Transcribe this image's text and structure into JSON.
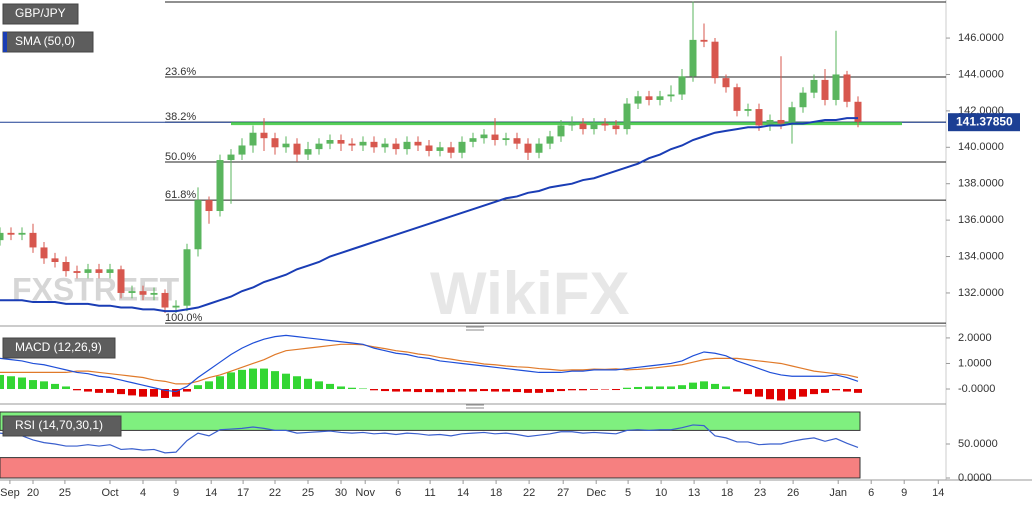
{
  "chart_data": [
    {
      "type": "candlestick",
      "title": "GBP/JPY",
      "indicator_label": "SMA (50,0)",
      "xlim": [
        0,
        86
      ],
      "ylim": [
        130.24,
        148.09
      ],
      "yticks": [
        {
          "value": 132,
          "label": "132.0000"
        },
        {
          "value": 134,
          "label": "134.0000"
        },
        {
          "value": 136,
          "label": "136.0000"
        },
        {
          "value": 138,
          "label": "138.0000"
        },
        {
          "value": 140,
          "label": "140.0000"
        },
        {
          "value": 142,
          "label": "142.0000"
        },
        {
          "value": 144,
          "label": "144.0000"
        },
        {
          "value": 146,
          "label": "146.0000"
        }
      ],
      "up_color": "#5ab55e",
      "down_color": "#d7574e",
      "open": [
        134.9,
        135.3,
        135.2,
        135.3,
        134.5,
        133.9,
        133.7,
        133.2,
        133.1,
        133.3,
        133.1,
        133.3,
        132.0,
        132.1,
        131.9,
        132.0,
        131.2,
        131.3,
        134.4,
        137.1,
        136.5,
        139.3,
        139.6,
        140.1,
        140.8,
        140.5,
        140.0,
        140.2,
        139.6,
        139.9,
        140.2,
        140.4,
        140.2,
        140.1,
        140.3,
        140.0,
        140.2,
        139.9,
        140.3,
        140.1,
        139.8,
        140.0,
        139.7,
        140.3,
        140.5,
        140.7,
        140.4,
        140.5,
        140.2,
        139.7,
        140.2,
        140.6,
        141.2,
        141.3,
        141.0,
        141.3,
        141.2,
        141.0,
        142.4,
        142.8,
        142.6,
        142.8,
        142.9,
        143.9,
        145.9,
        145.8,
        143.8,
        143.3,
        142.0,
        142.1,
        141.2,
        141.5,
        141.3,
        142.2,
        143.0,
        143.7,
        142.6,
        144.0,
        142.5
      ],
      "high": [
        135.6,
        135.6,
        135.6,
        135.8,
        134.8,
        134.2,
        134.0,
        133.5,
        133.6,
        133.6,
        133.6,
        133.5,
        132.4,
        132.4,
        132.3,
        132.2,
        131.6,
        134.7,
        137.8,
        137.3,
        139.6,
        139.9,
        140.5,
        141.2,
        141.6,
        140.8,
        140.6,
        140.5,
        140.3,
        140.5,
        140.7,
        140.7,
        140.5,
        140.6,
        140.6,
        140.5,
        140.5,
        140.6,
        140.6,
        140.4,
        140.3,
        140.3,
        140.6,
        140.8,
        141.0,
        141.6,
        140.8,
        140.8,
        140.5,
        140.5,
        140.9,
        141.5,
        141.7,
        141.6,
        141.6,
        141.6,
        141.5,
        142.7,
        143.1,
        143.1,
        143.1,
        143.4,
        144.3,
        148.0,
        146.8,
        146.0,
        144.0,
        143.5,
        142.4,
        142.4,
        141.8,
        145.0,
        142.5,
        143.3,
        144.0,
        144.3,
        146.4,
        144.2,
        142.8
      ],
      "low": [
        134.6,
        134.9,
        134.9,
        134.2,
        133.6,
        133.4,
        132.9,
        132.8,
        132.8,
        132.8,
        132.8,
        131.7,
        131.7,
        131.6,
        131.6,
        130.9,
        130.9,
        131.0,
        134.0,
        135.8,
        136.2,
        136.9,
        139.3,
        139.7,
        139.8,
        139.6,
        139.7,
        139.2,
        139.3,
        139.6,
        139.9,
        139.8,
        139.8,
        139.8,
        139.7,
        139.7,
        139.6,
        139.6,
        139.8,
        139.5,
        139.5,
        139.4,
        139.4,
        140.0,
        140.2,
        140.1,
        140.1,
        139.9,
        139.3,
        139.4,
        139.9,
        140.3,
        140.9,
        140.7,
        140.7,
        140.9,
        140.7,
        140.7,
        142.1,
        142.3,
        142.3,
        142.5,
        142.6,
        143.6,
        145.5,
        143.5,
        143.0,
        141.7,
        141.7,
        140.9,
        140.9,
        141.0,
        140.2,
        141.9,
        142.7,
        142.3,
        142.3,
        142.2,
        141.1
      ],
      "close": [
        135.3,
        135.2,
        135.3,
        134.5,
        133.9,
        133.7,
        133.2,
        133.1,
        133.3,
        133.1,
        133.3,
        132.0,
        132.1,
        131.9,
        132.0,
        131.2,
        131.3,
        134.4,
        137.1,
        136.5,
        139.3,
        139.6,
        140.1,
        140.8,
        140.5,
        140.0,
        140.2,
        139.6,
        139.9,
        140.2,
        140.4,
        140.2,
        140.1,
        140.3,
        140.0,
        140.2,
        139.9,
        140.3,
        140.1,
        139.8,
        140.0,
        139.7,
        140.3,
        140.5,
        140.7,
        140.4,
        140.5,
        140.2,
        139.7,
        140.2,
        140.6,
        141.2,
        141.3,
        141.0,
        141.3,
        141.2,
        141.0,
        142.4,
        142.8,
        142.6,
        142.8,
        142.9,
        143.9,
        145.9,
        145.8,
        143.8,
        143.3,
        142.0,
        142.1,
        141.2,
        141.5,
        141.3,
        142.2,
        143.0,
        143.7,
        142.6,
        144.0,
        142.5,
        141.4
      ],
      "sma": {
        "color": "#1a3db5",
        "values": [
          131.6,
          131.6,
          131.6,
          131.5,
          131.5,
          131.5,
          131.4,
          131.4,
          131.4,
          131.3,
          131.3,
          131.2,
          131.2,
          131.1,
          131.1,
          131.0,
          131.0,
          131.1,
          131.2,
          131.4,
          131.6,
          131.8,
          132.1,
          132.3,
          132.6,
          132.8,
          133.0,
          133.3,
          133.5,
          133.7,
          134.0,
          134.2,
          134.4,
          134.6,
          134.8,
          135.0,
          135.2,
          135.4,
          135.6,
          135.8,
          136.0,
          136.2,
          136.4,
          136.6,
          136.8,
          137.0,
          137.2,
          137.3,
          137.5,
          137.6,
          137.8,
          137.9,
          138.0,
          138.2,
          138.3,
          138.5,
          138.7,
          138.9,
          139.1,
          139.4,
          139.6,
          139.9,
          140.1,
          140.4,
          140.6,
          140.8,
          140.9,
          141.0,
          141.1,
          141.1,
          141.2,
          141.2,
          141.3,
          141.3,
          141.4,
          141.5,
          141.5,
          141.6,
          141.6
        ]
      },
      "fib_levels": [
        {
          "value": 147.98
        },
        {
          "value": 143.86,
          "label": "23.6%"
        },
        {
          "value": 141.38,
          "label": "38.2%"
        },
        {
          "value": 139.19,
          "label": "50.0%"
        },
        {
          "value": 137.1,
          "label": "61.8%"
        },
        {
          "value": 130.34,
          "label": "100.0%"
        }
      ],
      "support": {
        "value": 141.3,
        "x": [
          21,
          82
        ],
        "color": "#3cc83c"
      },
      "price_line": {
        "value": 141.3785,
        "label": "141.37850",
        "color": "#1c3f94"
      },
      "watermarks": [
        "FXSTREET",
        "WikiFX"
      ]
    },
    {
      "type": "macd",
      "title": "MACD (12,26,9)",
      "xlim": [
        0,
        86
      ],
      "ylim": [
        -0.43,
        2.31
      ],
      "yticks": [
        {
          "value": 2,
          "label": "2.0000"
        },
        {
          "value": 1,
          "label": "1.0000"
        },
        {
          "value": 0,
          "label": "-0.0000"
        }
      ],
      "histogram": {
        "up_color": "#33d633",
        "down_color": "#e00000",
        "values": [
          0.55,
          0.5,
          0.45,
          0.35,
          0.3,
          0.2,
          0.1,
          -0.05,
          -0.1,
          -0.15,
          -0.15,
          -0.2,
          -0.25,
          -0.3,
          -0.3,
          -0.35,
          -0.3,
          -0.1,
          0.15,
          0.3,
          0.5,
          0.65,
          0.75,
          0.8,
          0.8,
          0.7,
          0.6,
          0.5,
          0.4,
          0.3,
          0.2,
          0.1,
          0.05,
          0.02,
          -0.05,
          -0.08,
          -0.1,
          -0.1,
          -0.12,
          -0.12,
          -0.13,
          -0.12,
          -0.1,
          -0.1,
          -0.08,
          -0.1,
          -0.1,
          -0.12,
          -0.15,
          -0.15,
          -0.12,
          -0.08,
          -0.05,
          -0.05,
          -0.03,
          -0.02,
          -0.04,
          0.05,
          0.08,
          0.1,
          0.1,
          0.1,
          0.15,
          0.25,
          0.3,
          0.2,
          0.1,
          -0.1,
          -0.2,
          -0.3,
          -0.4,
          -0.45,
          -0.4,
          -0.3,
          -0.2,
          -0.15,
          -0.05,
          -0.1,
          -0.15
        ]
      },
      "macd": {
        "color": "#1f4fd8",
        "values": [
          1.2,
          1.15,
          1.1,
          1.0,
          0.95,
          0.85,
          0.75,
          0.65,
          0.6,
          0.5,
          0.45,
          0.35,
          0.25,
          0.15,
          0.05,
          -0.05,
          -0.1,
          0.1,
          0.45,
          0.75,
          1.05,
          1.35,
          1.6,
          1.8,
          1.95,
          2.05,
          2.1,
          2.05,
          2.0,
          1.95,
          1.9,
          1.85,
          1.8,
          1.75,
          1.6,
          1.5,
          1.4,
          1.35,
          1.25,
          1.2,
          1.1,
          1.05,
          1.0,
          0.95,
          0.9,
          0.85,
          0.8,
          0.75,
          0.7,
          0.65,
          0.65,
          0.65,
          0.7,
          0.7,
          0.75,
          0.75,
          0.75,
          0.8,
          0.85,
          0.9,
          0.95,
          1.0,
          1.1,
          1.3,
          1.45,
          1.4,
          1.3,
          1.1,
          0.95,
          0.8,
          0.65,
          0.55,
          0.5,
          0.5,
          0.5,
          0.5,
          0.55,
          0.45,
          0.3
        ]
      },
      "signal": {
        "color": "#e07a2a",
        "values": [
          0.65,
          0.65,
          0.65,
          0.65,
          0.65,
          0.65,
          0.65,
          0.7,
          0.7,
          0.65,
          0.6,
          0.55,
          0.5,
          0.45,
          0.35,
          0.3,
          0.2,
          0.2,
          0.3,
          0.45,
          0.55,
          0.7,
          0.85,
          1.0,
          1.15,
          1.35,
          1.5,
          1.55,
          1.6,
          1.65,
          1.7,
          1.75,
          1.75,
          1.73,
          1.65,
          1.58,
          1.5,
          1.45,
          1.37,
          1.32,
          1.23,
          1.17,
          1.1,
          1.05,
          0.98,
          0.95,
          0.9,
          0.87,
          0.85,
          0.8,
          0.77,
          0.73,
          0.75,
          0.75,
          0.78,
          0.77,
          0.79,
          0.75,
          0.77,
          0.8,
          0.85,
          0.9,
          0.95,
          1.05,
          1.15,
          1.2,
          1.2,
          1.2,
          1.15,
          1.1,
          1.05,
          1.0,
          0.9,
          0.8,
          0.7,
          0.65,
          0.6,
          0.55,
          0.45
        ]
      }
    },
    {
      "type": "rsi",
      "title": "RSI (14,70,30,1)",
      "xlim": [
        0,
        86
      ],
      "ylim": [
        0,
        100
      ],
      "yticks": [
        {
          "value": 50,
          "label": "50.0000"
        },
        {
          "value": 0,
          "label": "0.0000"
        }
      ],
      "upper_band": 70,
      "lower_band": 30,
      "upper_color": "#7ff07f",
      "lower_color": "#f68080",
      "rsi": {
        "color": "#3a5fcd",
        "values": [
          66,
          64,
          62,
          56,
          52,
          50,
          47,
          47,
          49,
          47,
          49,
          42,
          43,
          41,
          42,
          37,
          38,
          55,
          66,
          62,
          71,
          72,
          73,
          75,
          73,
          70,
          70,
          66,
          67,
          68,
          69,
          67,
          66,
          67,
          65,
          66,
          64,
          66,
          65,
          63,
          64,
          62,
          65,
          66,
          67,
          65,
          66,
          64,
          61,
          63,
          65,
          68,
          68,
          66,
          67,
          66,
          65,
          70,
          71,
          70,
          71,
          71,
          74,
          78,
          77,
          62,
          59,
          53,
          53,
          49,
          50,
          50,
          54,
          57,
          59,
          54,
          58,
          51,
          45
        ]
      },
      "xticks": [
        {
          "value": 0.9,
          "label": "Sep"
        },
        {
          "value": 3,
          "label": "20"
        },
        {
          "value": 5.9,
          "label": "25"
        },
        {
          "value": 10,
          "label": "Oct"
        },
        {
          "value": 13,
          "label": "4"
        },
        {
          "value": 16,
          "label": "9"
        },
        {
          "value": 19.2,
          "label": "14"
        },
        {
          "value": 22.1,
          "label": "17"
        },
        {
          "value": 25,
          "label": "22"
        },
        {
          "value": 28,
          "label": "25"
        },
        {
          "value": 31,
          "label": "30"
        },
        {
          "value": 33.2,
          "label": "Nov"
        },
        {
          "value": 36.2,
          "label": "6"
        },
        {
          "value": 39.1,
          "label": "11"
        },
        {
          "value": 42.1,
          "label": "14"
        },
        {
          "value": 45.1,
          "label": "18"
        },
        {
          "value": 48.1,
          "label": "22"
        },
        {
          "value": 51.2,
          "label": "27"
        },
        {
          "value": 54.2,
          "label": "Dec"
        },
        {
          "value": 57.1,
          "label": "5"
        },
        {
          "value": 60.1,
          "label": "10"
        },
        {
          "value": 63.1,
          "label": "13"
        },
        {
          "value": 66.1,
          "label": "18"
        },
        {
          "value": 69.1,
          "label": "23"
        },
        {
          "value": 72.1,
          "label": "26"
        },
        {
          "value": 76.2,
          "label": "Jan"
        },
        {
          "value": 79.2,
          "label": "6"
        },
        {
          "value": 82.2,
          "label": "9"
        },
        {
          "value": 85.3,
          "label": "14"
        }
      ]
    }
  ]
}
